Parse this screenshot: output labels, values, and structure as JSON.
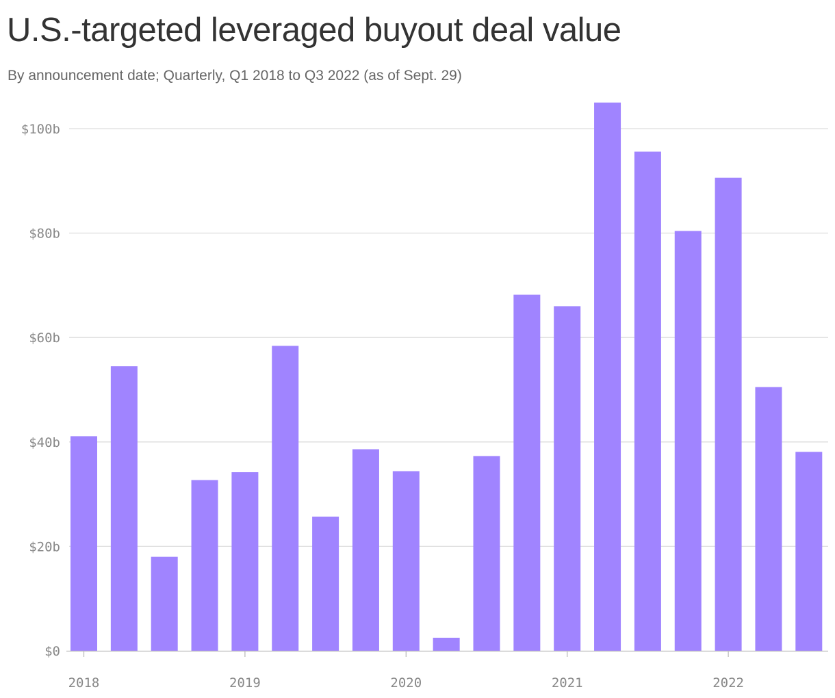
{
  "title": "U.S.-targeted leveraged buyout deal value",
  "subtitle": "By announcement date; Quarterly, Q1 2018 to Q3 2022 (as of Sept. 29)",
  "colors": {
    "bar": "#a084ff",
    "grid": "#dddddd",
    "tick_text": "#888888"
  },
  "chart_data": {
    "type": "bar",
    "title": "U.S.-targeted leveraged buyout deal value",
    "subtitle": "By announcement date; Quarterly, Q1 2018 to Q3 2022 (as of Sept. 29)",
    "xlabel": "",
    "ylabel": "",
    "categories": [
      "Q1 2018",
      "Q2 2018",
      "Q3 2018",
      "Q4 2018",
      "Q1 2019",
      "Q2 2019",
      "Q3 2019",
      "Q4 2019",
      "Q1 2020",
      "Q2 2020",
      "Q3 2020",
      "Q4 2020",
      "Q1 2021",
      "Q2 2021",
      "Q3 2021",
      "Q4 2021",
      "Q1 2022",
      "Q2 2022",
      "Q3 2022"
    ],
    "values": [
      41.1,
      54.5,
      18.0,
      32.7,
      34.2,
      58.4,
      25.7,
      38.6,
      34.4,
      2.5,
      37.3,
      68.2,
      66.0,
      105.0,
      95.6,
      80.4,
      90.6,
      50.5,
      38.1
    ],
    "ylim": [
      0,
      105
    ],
    "yticks": [
      0,
      20,
      40,
      60,
      80,
      100
    ],
    "ytick_labels": [
      "$0",
      "$20b",
      "$40b",
      "$60b",
      "$80b",
      "$100b"
    ],
    "xticks": [
      "2018",
      "2019",
      "2020",
      "2021",
      "2022"
    ],
    "xtick_category_index": [
      0,
      4,
      8,
      12,
      16
    ],
    "grid": true,
    "legend": "none"
  }
}
